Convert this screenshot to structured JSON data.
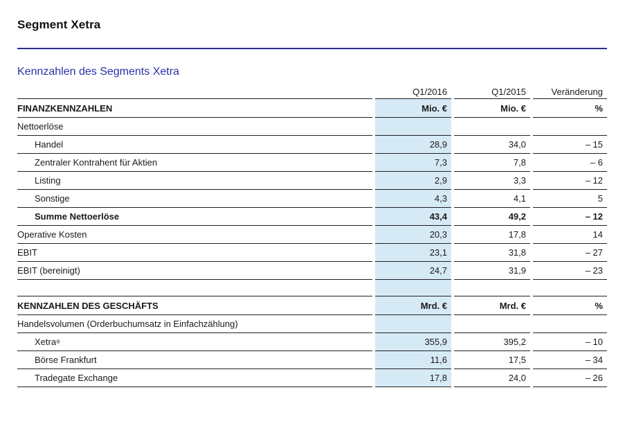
{
  "page": {
    "title": "Segment Xetra",
    "section_heading": "Kennzahlen des Segments Xetra"
  },
  "colors": {
    "title_rule": "#2b2b8c",
    "heading_blue": "#2e2ea8",
    "highlight_column": "#d6eaf6",
    "row_line": "#202020"
  },
  "table": {
    "columns": [
      "",
      "Q1/2016",
      "Q1/2015",
      "Veränderung"
    ],
    "rows": [
      {
        "type": "section",
        "label": "FINANZKENNZAHLEN",
        "q1_2016": "Mio. €",
        "q1_2015": "Mio. €",
        "change": "%"
      },
      {
        "type": "group",
        "label": "Nettoerlöse",
        "q1_2016": "",
        "q1_2015": "",
        "change": ""
      },
      {
        "type": "data",
        "indent": true,
        "label": "Handel",
        "q1_2016": "28,9",
        "q1_2015": "34,0",
        "change": "– 15"
      },
      {
        "type": "data",
        "indent": true,
        "label": "Zentraler Kontrahent für Aktien",
        "q1_2016": "7,3",
        "q1_2015": "7,8",
        "change": "– 6"
      },
      {
        "type": "data",
        "indent": true,
        "label": "Listing",
        "q1_2016": "2,9",
        "q1_2015": "3,3",
        "change": "– 12"
      },
      {
        "type": "data",
        "indent": true,
        "label": "Sonstige",
        "q1_2016": "4,3",
        "q1_2015": "4,1",
        "change": "5"
      },
      {
        "type": "data",
        "indent": true,
        "bold": true,
        "label": "Summe Nettoerlöse",
        "q1_2016": "43,4",
        "q1_2015": "49,2",
        "change": "– 12"
      },
      {
        "type": "data",
        "label": "Operative Kosten",
        "q1_2016": "20,3",
        "q1_2015": "17,8",
        "change": "14"
      },
      {
        "type": "data",
        "label": "EBIT",
        "q1_2016": "23,1",
        "q1_2015": "31,8",
        "change": "– 27"
      },
      {
        "type": "data",
        "label": "EBIT (bereinigt)",
        "q1_2016": "24,7",
        "q1_2015": "31,9",
        "change": "– 23"
      },
      {
        "type": "spacer",
        "label": "",
        "q1_2016": "",
        "q1_2015": "",
        "change": ""
      },
      {
        "type": "section",
        "label": "KENNZAHLEN DES GESCHÄFTS",
        "q1_2016": "Mrd. €",
        "q1_2015": "Mrd. €",
        "change": "%"
      },
      {
        "type": "group",
        "label": "Handelsvolumen (Orderbuchumsatz in Einfachzählung)",
        "q1_2016": "",
        "q1_2015": "",
        "change": ""
      },
      {
        "type": "data",
        "indent": true,
        "label": "Xetra",
        "label_sup": "®",
        "q1_2016": "355,9",
        "q1_2015": "395,2",
        "change": "– 10"
      },
      {
        "type": "data",
        "indent": true,
        "label": "Börse Frankfurt",
        "q1_2016": "11,6",
        "q1_2015": "17,5",
        "change": "– 34"
      },
      {
        "type": "data",
        "indent": true,
        "label": "Tradegate Exchange",
        "q1_2016": "17,8",
        "q1_2015": "24,0",
        "change": "– 26"
      }
    ]
  }
}
